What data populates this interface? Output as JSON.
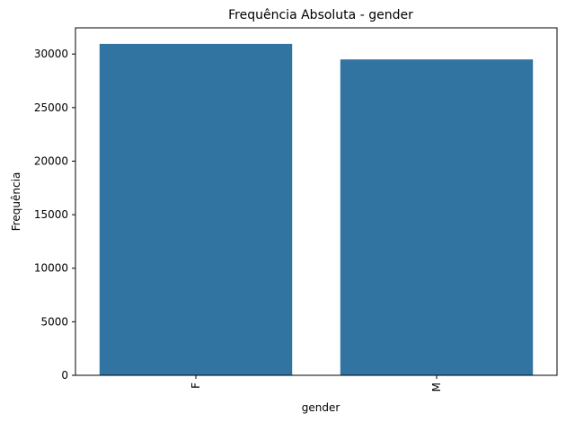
{
  "chart_data": {
    "type": "bar",
    "title": "Frequência Absoluta - gender",
    "xlabel": "gender",
    "ylabel": "Frequência",
    "categories": [
      "F",
      "M"
    ],
    "values": [
      30950,
      29500
    ],
    "ylim": [
      0,
      32450
    ],
    "yticks": [
      0,
      5000,
      10000,
      15000,
      20000,
      25000,
      30000
    ],
    "grid": false,
    "legend": "none",
    "bar_color": "#3274a1",
    "x_tick_rotation": "vertical"
  }
}
